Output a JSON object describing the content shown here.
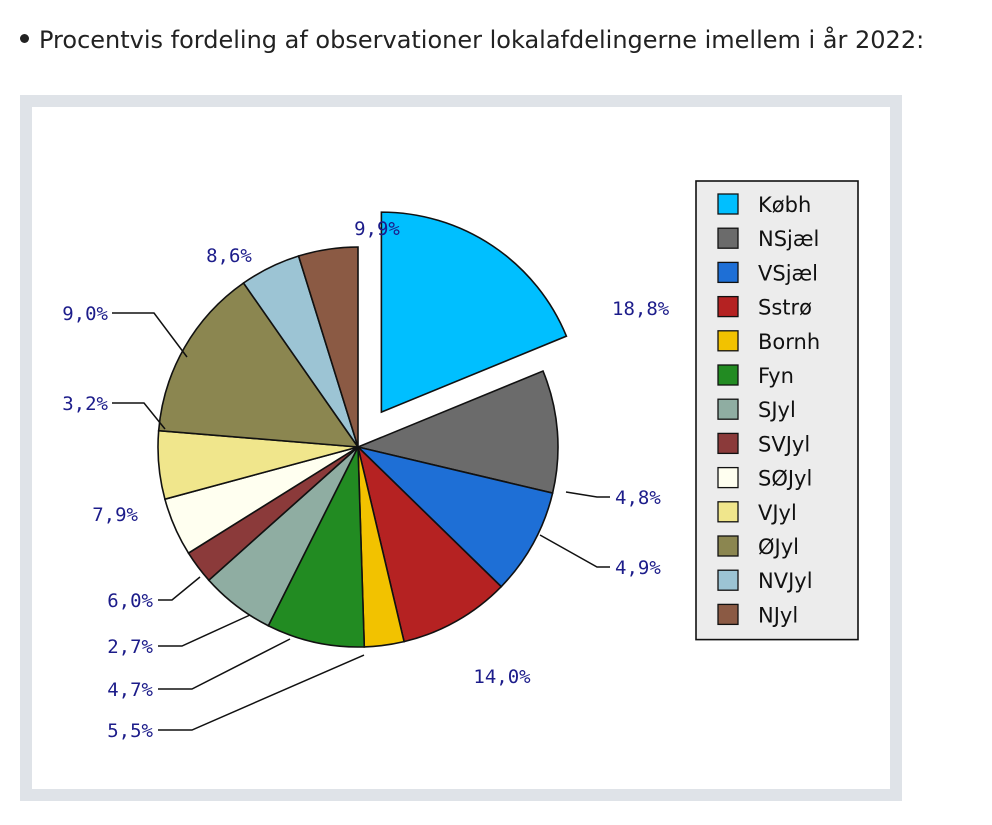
{
  "heading": "Procentvis fordeling af observationer lokalafdelingerne imellem i år 2022:",
  "chart_data": {
    "type": "pie",
    "title": "",
    "legend_position": "right",
    "exploded": "Købh",
    "slices": [
      {
        "name": "Købh",
        "value": 18.8,
        "label": "18,8%",
        "color": "#00bfff"
      },
      {
        "name": "NSjæl",
        "value": 9.9,
        "label": "9,9%",
        "color": "#6b6b6b"
      },
      {
        "name": "VSjæl",
        "value": 8.6,
        "label": "8,6%",
        "color": "#1e6fd6"
      },
      {
        "name": "Sstrø",
        "value": 9.0,
        "label": "9,0%",
        "color": "#b52222"
      },
      {
        "name": "Bornh",
        "value": 3.2,
        "label": "3,2%",
        "color": "#f2c200"
      },
      {
        "name": "Fyn",
        "value": 7.9,
        "label": "7,9%",
        "color": "#228b22"
      },
      {
        "name": "SJyl",
        "value": 6.0,
        "label": "6,0%",
        "color": "#8fada2"
      },
      {
        "name": "SVJyl",
        "value": 2.7,
        "label": "2,7%",
        "color": "#8b3a3a"
      },
      {
        "name": "SØJyl",
        "value": 4.7,
        "label": "4,7%",
        "color": "#fffff0"
      },
      {
        "name": "VJyl",
        "value": 5.5,
        "label": "5,5%",
        "color": "#f0e68c"
      },
      {
        "name": "ØJyl",
        "value": 14.0,
        "label": "14,0%",
        "color": "#8b8650"
      },
      {
        "name": "NVJyl",
        "value": 4.9,
        "label": "4,9%",
        "color": "#9cc4d4"
      },
      {
        "name": "NJyl",
        "value": 4.8,
        "label": "4,8%",
        "color": "#8b5a44"
      }
    ]
  }
}
